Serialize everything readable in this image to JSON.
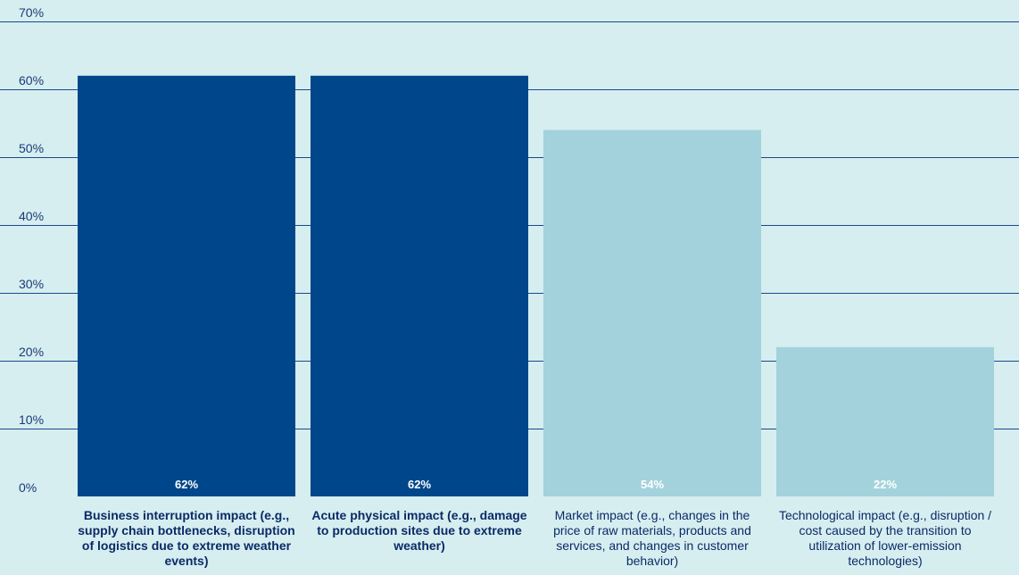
{
  "chart_data": {
    "type": "bar",
    "categories": [
      "Business interruption impact (e.g., supply chain bottlenecks, disruption of logistics due to extreme weather events)",
      "Acute physical impact (e.g., damage to production sites due to extreme weather)",
      "Market impact (e.g., changes in the price of raw materials, products and services, and changes in customer behavior)",
      "Technological impact (e.g., disruption / cost caused by the transition to utilization of lower-emission technologies)"
    ],
    "values": [
      62,
      62,
      54,
      22
    ],
    "data_labels": [
      "62%",
      "62%",
      "54%",
      "22%"
    ],
    "y_ticks": [
      0,
      10,
      20,
      30,
      40,
      50,
      60,
      70
    ],
    "y_tick_labels": [
      "0%",
      "10%",
      "20%",
      "30%",
      "40%",
      "50%",
      "60%",
      "70%"
    ],
    "ylim": [
      0,
      70
    ],
    "grid": true,
    "title": "",
    "xlabel": "",
    "ylabel": "",
    "bar_colors": [
      "#00468a",
      "#00468a",
      "#a3d2dc",
      "#a3d2dc"
    ],
    "bold_categories": [
      true,
      true,
      false,
      false
    ],
    "grid_color": "#1a4a8a",
    "text_color": "#0b2a66"
  }
}
